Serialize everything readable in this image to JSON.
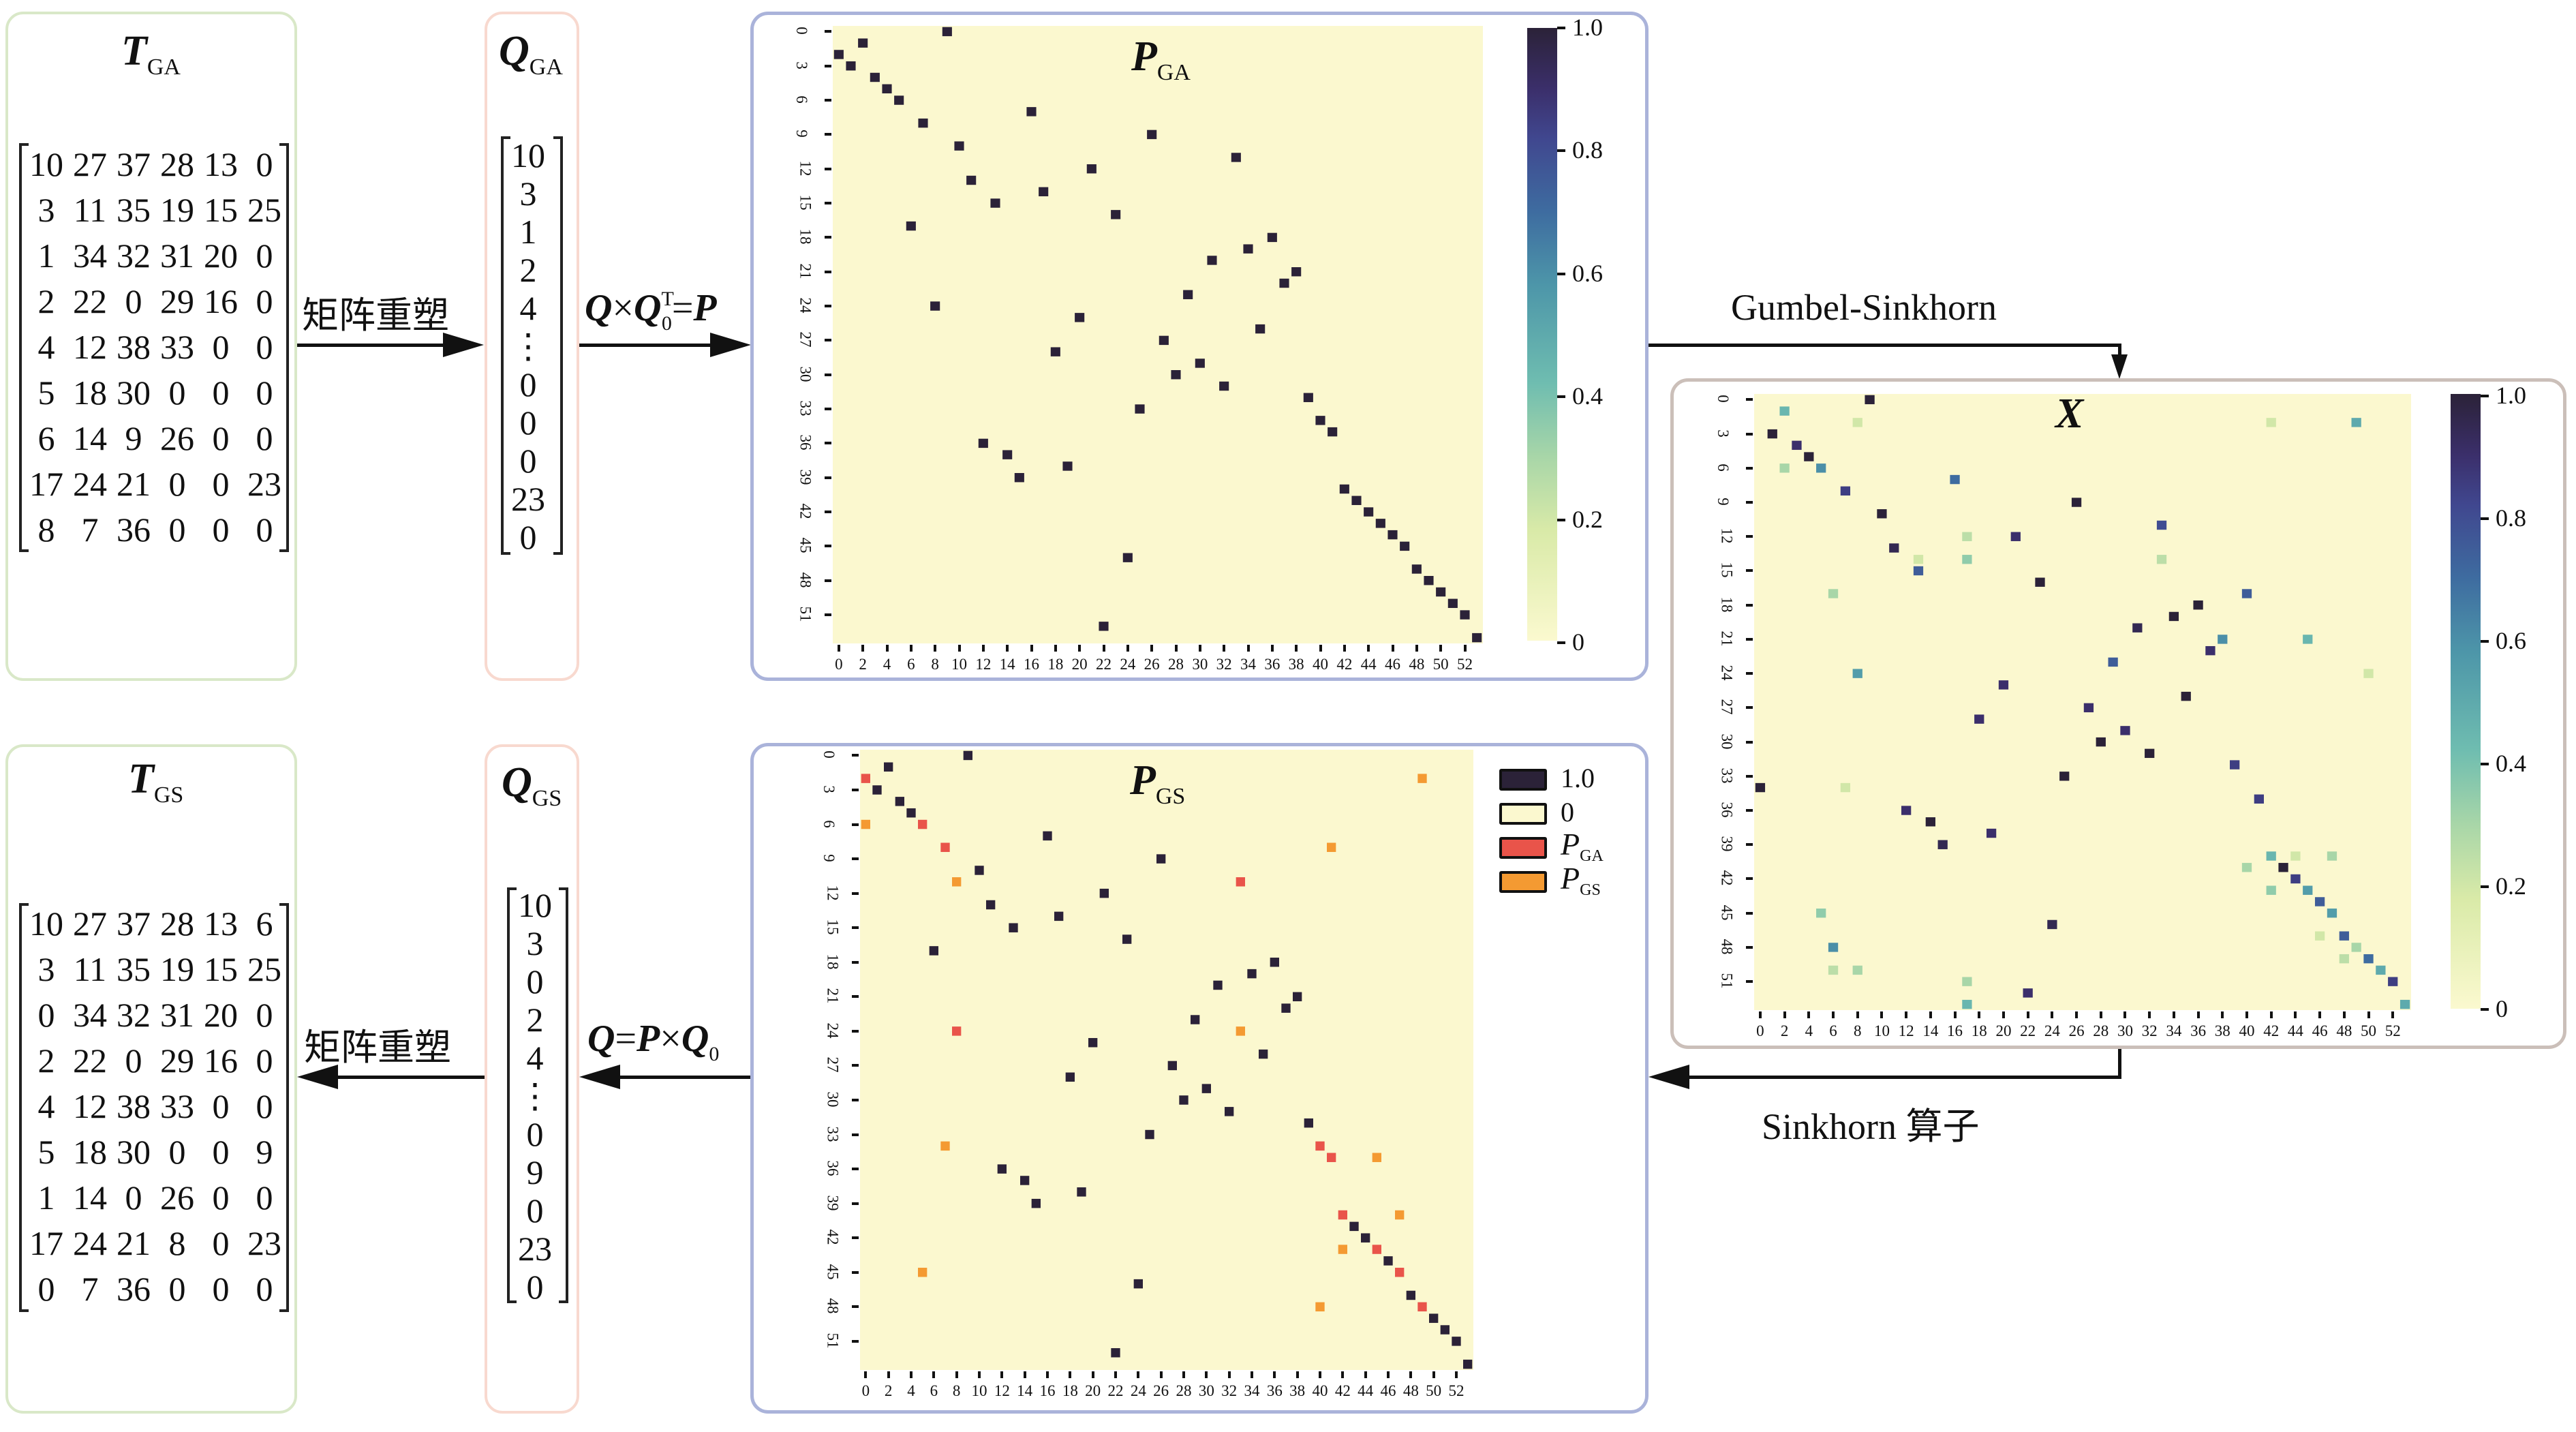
{
  "t_ga": {
    "title": "T",
    "sub": "GA",
    "rows": [
      [
        "10",
        "27",
        "37",
        "28",
        "13",
        "0"
      ],
      [
        "3",
        "11",
        "35",
        "19",
        "15",
        "25"
      ],
      [
        "1",
        "34",
        "32",
        "31",
        "20",
        "0"
      ],
      [
        "2",
        "22",
        "0",
        "29",
        "16",
        "0"
      ],
      [
        "4",
        "12",
        "38",
        "33",
        "0",
        "0"
      ],
      [
        "5",
        "18",
        "30",
        "0",
        "0",
        "0"
      ],
      [
        "6",
        "14",
        "9",
        "26",
        "0",
        "0"
      ],
      [
        "17",
        "24",
        "21",
        "0",
        "0",
        "23"
      ],
      [
        "8",
        "7",
        "36",
        "0",
        "0",
        "0"
      ]
    ]
  },
  "q_ga": {
    "title": "Q",
    "sub": "GA",
    "values": [
      "10",
      "3",
      "1",
      "2",
      "4",
      "⋮",
      "0",
      "0",
      "0",
      "23",
      "0"
    ]
  },
  "t_gs": {
    "title": "T",
    "sub": "GS",
    "rows": [
      [
        "10",
        "27",
        "37",
        "28",
        "13",
        "6"
      ],
      [
        "3",
        "11",
        "35",
        "19",
        "15",
        "25"
      ],
      [
        "0",
        "34",
        "32",
        "31",
        "20",
        "0"
      ],
      [
        "2",
        "22",
        "0",
        "29",
        "16",
        "0"
      ],
      [
        "4",
        "12",
        "38",
        "33",
        "0",
        "0"
      ],
      [
        "5",
        "18",
        "30",
        "0",
        "0",
        "9"
      ],
      [
        "1",
        "14",
        "0",
        "26",
        "0",
        "0"
      ],
      [
        "17",
        "24",
        "21",
        "8",
        "0",
        "23"
      ],
      [
        "0",
        "7",
        "36",
        "0",
        "0",
        "0"
      ]
    ]
  },
  "q_gs": {
    "title": "Q",
    "sub": "GS",
    "values": [
      "10",
      "3",
      "0",
      "2",
      "4",
      "⋮",
      "0",
      "9",
      "0",
      "23",
      "0"
    ]
  },
  "arrows": {
    "reshape_top": "矩阵重塑",
    "qq": {
      "q1": "Q",
      "times": "×",
      "q2": "Q",
      "sup": "T",
      "sub": "0",
      "eq": "=",
      "p": "P"
    },
    "gumbel": "Gumbel-Sinkhorn",
    "sinkhorn": "Sinkhorn 算子",
    "qpq": {
      "q": "Q",
      "eq": "=",
      "p": "P",
      "times": "×",
      "q0": "Q",
      "sub": "0"
    },
    "reshape_bottom": "矩阵重塑"
  },
  "colors": {
    "dark": "#2b2238",
    "bg": "#fbf8cf",
    "ga_only": "#e9544a",
    "gs_only": "#f49a32"
  },
  "chart_data": [
    {
      "type": "heatmap",
      "id": "p_ga",
      "title": "P",
      "title_sub": "GA",
      "size": 54,
      "row_ticks": [
        "0",
        "3",
        "6",
        "9",
        "12",
        "15",
        "18",
        "21",
        "24",
        "27",
        "30",
        "33",
        "36",
        "39",
        "42",
        "45",
        "48",
        "51"
      ],
      "col_ticks": [
        "0",
        "2",
        "4",
        "6",
        "8",
        "10",
        "12",
        "14",
        "16",
        "18",
        "20",
        "22",
        "24",
        "26",
        "28",
        "30",
        "32",
        "34",
        "36",
        "38",
        "40",
        "42",
        "44",
        "46",
        "48",
        "50",
        "52"
      ],
      "perm": [
        9,
        2,
        0,
        1,
        3,
        4,
        5,
        16,
        7,
        26,
        10,
        33,
        21,
        11,
        17,
        13,
        23,
        6,
        36,
        34,
        31,
        38,
        37,
        29,
        8,
        20,
        35,
        27,
        18,
        30,
        28,
        32,
        39,
        25,
        40,
        41,
        12,
        14,
        19,
        15,
        42,
        43,
        44,
        45,
        46,
        47,
        24,
        48,
        49,
        50,
        51,
        52,
        22,
        53
      ],
      "colorbar": {
        "ticks": [
          "0",
          "0.2",
          "0.4",
          "0.6",
          "0.8",
          "1.0"
        ],
        "range": [
          0,
          1
        ]
      }
    },
    {
      "type": "heatmap",
      "id": "x",
      "title": "X",
      "size": 54,
      "row_ticks": [
        "0",
        "3",
        "6",
        "9",
        "12",
        "15",
        "18",
        "21",
        "24",
        "27",
        "30",
        "33",
        "36",
        "39",
        "42",
        "45",
        "48",
        "51"
      ],
      "col_ticks": [
        "0",
        "2",
        "4",
        "6",
        "8",
        "10",
        "12",
        "14",
        "16",
        "18",
        "20",
        "22",
        "24",
        "26",
        "28",
        "30",
        "32",
        "34",
        "36",
        "38",
        "40",
        "42",
        "44",
        "46",
        "48",
        "50",
        "52"
      ],
      "cells": [
        [
          0,
          9,
          1.0
        ],
        [
          1,
          2,
          0.45
        ],
        [
          2,
          49,
          0.5
        ],
        [
          2,
          8,
          0.2
        ],
        [
          2,
          42,
          0.2
        ],
        [
          3,
          1,
          1.0
        ],
        [
          4,
          3,
          0.9
        ],
        [
          5,
          4,
          1.0
        ],
        [
          6,
          2,
          0.3
        ],
        [
          6,
          5,
          0.6
        ],
        [
          7,
          16,
          0.7
        ],
        [
          8,
          7,
          0.85
        ],
        [
          9,
          26,
          1.0
        ],
        [
          10,
          10,
          1.0
        ],
        [
          11,
          33,
          0.8
        ],
        [
          12,
          17,
          0.25
        ],
        [
          12,
          21,
          0.9
        ],
        [
          13,
          11,
          0.95
        ],
        [
          14,
          13,
          0.2
        ],
        [
          14,
          17,
          0.35
        ],
        [
          14,
          33,
          0.25
        ],
        [
          15,
          13,
          0.75
        ],
        [
          16,
          23,
          1.0
        ],
        [
          17,
          6,
          0.3
        ],
        [
          17,
          40,
          0.75
        ],
        [
          18,
          36,
          1.0
        ],
        [
          19,
          34,
          1.0
        ],
        [
          20,
          31,
          0.95
        ],
        [
          21,
          38,
          0.6
        ],
        [
          21,
          45,
          0.45
        ],
        [
          22,
          37,
          0.9
        ],
        [
          23,
          29,
          0.75
        ],
        [
          24,
          8,
          0.55
        ],
        [
          24,
          50,
          0.2
        ],
        [
          25,
          20,
          0.9
        ],
        [
          26,
          35,
          1.0
        ],
        [
          27,
          27,
          0.9
        ],
        [
          28,
          18,
          0.9
        ],
        [
          29,
          30,
          0.9
        ],
        [
          30,
          28,
          1.0
        ],
        [
          31,
          32,
          1.0
        ],
        [
          32,
          39,
          0.85
        ],
        [
          33,
          25,
          1.0
        ],
        [
          34,
          0,
          1.0
        ],
        [
          34,
          7,
          0.2
        ],
        [
          35,
          41,
          0.85
        ],
        [
          36,
          12,
          0.9
        ],
        [
          37,
          14,
          1.0
        ],
        [
          38,
          19,
          0.9
        ],
        [
          39,
          15,
          0.95
        ],
        [
          40,
          42,
          0.45
        ],
        [
          40,
          44,
          0.2
        ],
        [
          40,
          47,
          0.3
        ],
        [
          41,
          40,
          0.3
        ],
        [
          41,
          43,
          1.0
        ],
        [
          42,
          44,
          0.85
        ],
        [
          43,
          42,
          0.35
        ],
        [
          43,
          45,
          0.55
        ],
        [
          44,
          46,
          0.75
        ],
        [
          45,
          5,
          0.35
        ],
        [
          45,
          47,
          0.55
        ],
        [
          46,
          24,
          0.95
        ],
        [
          47,
          48,
          0.75
        ],
        [
          47,
          46,
          0.2
        ],
        [
          48,
          6,
          0.6
        ],
        [
          48,
          49,
          0.3
        ],
        [
          49,
          50,
          0.7
        ],
        [
          49,
          48,
          0.25
        ],
        [
          50,
          51,
          0.5
        ],
        [
          50,
          6,
          0.25
        ],
        [
          50,
          8,
          0.3
        ],
        [
          51,
          52,
          0.85
        ],
        [
          51,
          17,
          0.3
        ],
        [
          52,
          22,
          0.9
        ],
        [
          53,
          17,
          0.45
        ],
        [
          53,
          53,
          0.5
        ]
      ],
      "colorbar": {
        "ticks": [
          "0",
          "0.2",
          "0.4",
          "0.6",
          "0.8",
          "1.0"
        ],
        "range": [
          0,
          1
        ]
      }
    },
    {
      "type": "heatmap",
      "id": "p_gs",
      "title": "P",
      "title_sub": "GS",
      "size": 54,
      "row_ticks": [
        "0",
        "3",
        "6",
        "9",
        "12",
        "15",
        "18",
        "21",
        "24",
        "27",
        "30",
        "33",
        "36",
        "39",
        "42",
        "45",
        "48",
        "51"
      ],
      "col_ticks": [
        "0",
        "2",
        "4",
        "6",
        "8",
        "10",
        "12",
        "14",
        "16",
        "18",
        "20",
        "22",
        "24",
        "26",
        "28",
        "30",
        "32",
        "34",
        "36",
        "38",
        "40",
        "42",
        "44",
        "46",
        "48",
        "50",
        "52"
      ],
      "perm_gs": [
        9,
        2,
        49,
        1,
        3,
        4,
        0,
        16,
        41,
        26,
        10,
        8,
        21,
        11,
        17,
        13,
        23,
        6,
        36,
        34,
        31,
        38,
        37,
        29,
        33,
        20,
        35,
        27,
        18,
        30,
        28,
        32,
        39,
        25,
        7,
        45,
        12,
        14,
        19,
        15,
        47,
        43,
        44,
        42,
        46,
        5,
        24,
        48,
        40,
        50,
        51,
        52,
        22,
        53
      ],
      "legend": [
        {
          "label": "1.0"
        },
        {
          "label": "0"
        },
        {
          "label": "P",
          "sub": "GA"
        },
        {
          "label": "P",
          "sub": "GS"
        }
      ]
    }
  ]
}
